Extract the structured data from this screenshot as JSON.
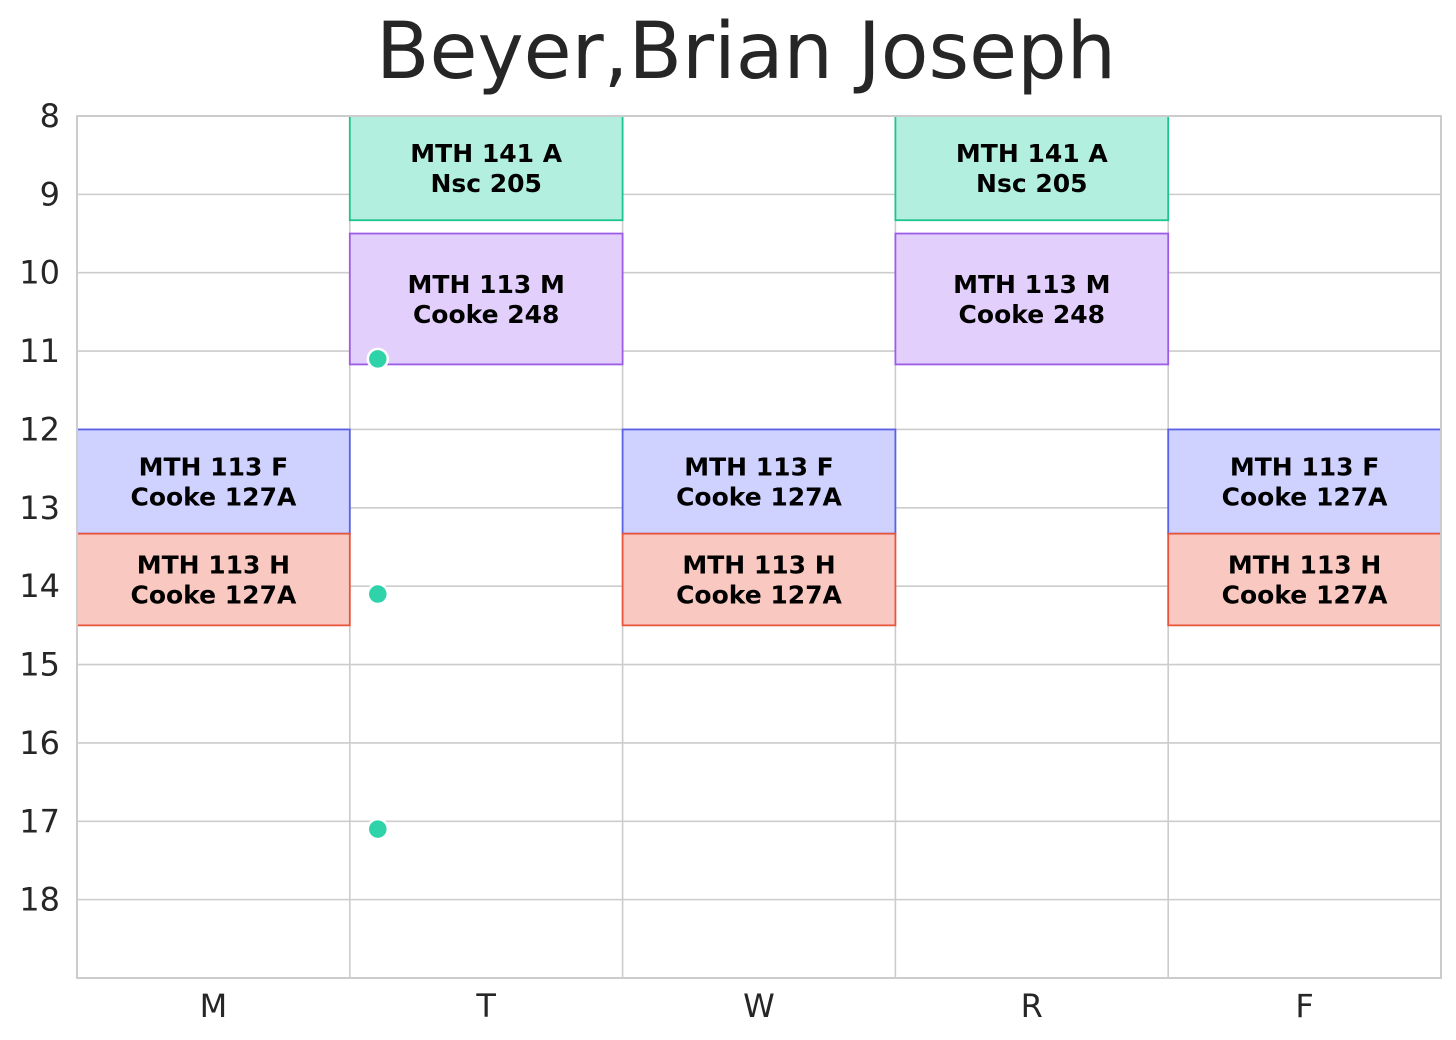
{
  "chart_data": {
    "type": "schedule",
    "title": "Beyer,Brian Joseph",
    "days": [
      "M",
      "T",
      "W",
      "R",
      "F"
    ],
    "y_ticks": [
      8,
      9,
      10,
      11,
      12,
      13,
      14,
      15,
      16,
      17,
      18
    ],
    "ylim": [
      8,
      19
    ],
    "grid": true,
    "events": [
      {
        "day": "T",
        "start": 8.0,
        "end": 9.33,
        "label": "MTH 141 A\nNsc 205",
        "color": "#b2efdf",
        "edge": "#1cc48f"
      },
      {
        "day": "R",
        "start": 8.0,
        "end": 9.33,
        "label": "MTH 141 A\nNsc 205",
        "color": "#b2efdf",
        "edge": "#1cc48f"
      },
      {
        "day": "T",
        "start": 9.5,
        "end": 11.17,
        "label": "MTH 113 M\nCooke 248",
        "color": "#e3cffc",
        "edge": "#9d5ce8"
      },
      {
        "day": "R",
        "start": 9.5,
        "end": 11.17,
        "label": "MTH 113 M\nCooke 248",
        "color": "#e3cffc",
        "edge": "#9d5ce8"
      },
      {
        "day": "M",
        "start": 12.0,
        "end": 13.33,
        "label": "MTH 113 F\nCooke 127A",
        "color": "#cfd1ff",
        "edge": "#5b62e6"
      },
      {
        "day": "W",
        "start": 12.0,
        "end": 13.33,
        "label": "MTH 113 F\nCooke 127A",
        "color": "#cfd1ff",
        "edge": "#5b62e6"
      },
      {
        "day": "F",
        "start": 12.0,
        "end": 13.33,
        "label": "MTH 113 F\nCooke 127A",
        "color": "#cfd1ff",
        "edge": "#5b62e6"
      },
      {
        "day": "M",
        "start": 13.33,
        "end": 14.5,
        "label": "MTH 113 H\nCooke 127A",
        "color": "#f9c9c1",
        "edge": "#e8553d"
      },
      {
        "day": "W",
        "start": 13.33,
        "end": 14.5,
        "label": "MTH 113 H\nCooke 127A",
        "color": "#f9c9c1",
        "edge": "#e8553d"
      },
      {
        "day": "F",
        "start": 13.33,
        "end": 14.5,
        "label": "MTH 113 H\nCooke 127A",
        "color": "#f9c9c1",
        "edge": "#e8553d"
      }
    ],
    "markers": [
      {
        "day": "T",
        "time": 11.1,
        "color": "#2ed3aa"
      },
      {
        "day": "T",
        "time": 14.1,
        "color": "#2ed3aa"
      },
      {
        "day": "T",
        "time": 17.1,
        "color": "#2ed3aa"
      }
    ]
  }
}
